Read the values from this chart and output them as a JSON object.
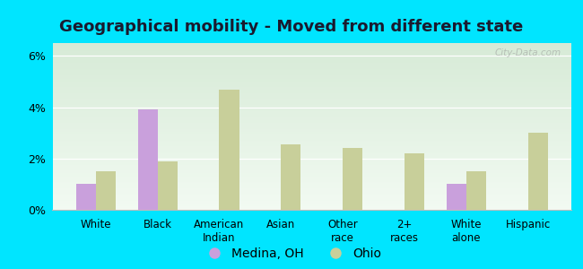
{
  "title": "Geographical mobility - Moved from different state",
  "categories": [
    "White",
    "Black",
    "American\nIndian",
    "Asian",
    "Other\nrace",
    "2+\nraces",
    "White\nalone",
    "Hispanic"
  ],
  "medina_values": [
    1.0,
    3.9,
    0.0,
    0.0,
    0.0,
    0.0,
    1.0,
    0.0
  ],
  "ohio_values": [
    1.5,
    1.9,
    4.7,
    2.55,
    2.4,
    2.2,
    1.5,
    3.0
  ],
  "medina_color": "#c9a0dc",
  "ohio_color": "#c8cf9a",
  "outer_bg": "#00e5ff",
  "plot_bg_top": "#d6ead6",
  "plot_bg_bottom": "#f2faf2",
  "ylim_max": 6.5,
  "yticks": [
    0,
    2,
    4,
    6
  ],
  "legend_medina": "Medina, OH",
  "legend_ohio": "Ohio",
  "title_fontsize": 13,
  "bar_width": 0.32,
  "watermark": "City-Data.com"
}
